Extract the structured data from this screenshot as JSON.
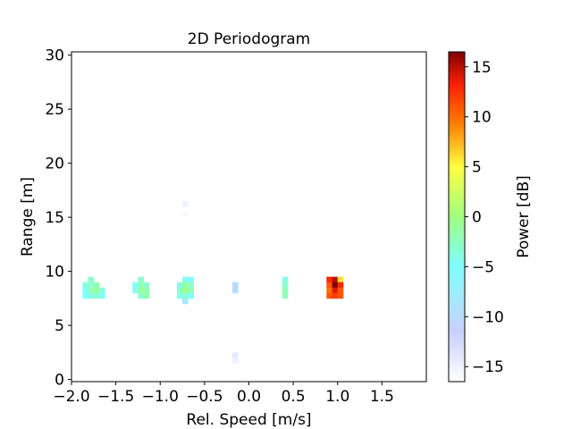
{
  "chart_data": {
    "type": "heatmap",
    "title": "2D Periodogram",
    "xlabel": "Rel. Speed [m/s]",
    "ylabel": "Range [m]",
    "xlim": [
      -2.0,
      2.0
    ],
    "ylim": [
      -0.2,
      30.3
    ],
    "x_ticks": [
      -2.0,
      -1.5,
      -1.0,
      -0.5,
      0.0,
      0.5,
      1.0,
      1.5
    ],
    "x_tick_labels": [
      "−2.0",
      "−1.5",
      "−1.0",
      "−0.5",
      "0.0",
      "0.5",
      "1.0",
      "1.5"
    ],
    "y_ticks": [
      0,
      5,
      10,
      15,
      20,
      25,
      30
    ],
    "y_tick_labels": [
      "0",
      "5",
      "10",
      "15",
      "20",
      "25",
      "30"
    ],
    "colorbar": {
      "label": "Power [dB]",
      "range": [
        -16.5,
        16.5
      ],
      "colormap": "jet",
      "ticks": [
        -15,
        -10,
        -5,
        0,
        5,
        10,
        15
      ],
      "tick_labels": [
        "−15",
        "−10",
        "−5",
        "0",
        "5",
        "10",
        "15"
      ]
    },
    "cell_size": {
      "dx": 0.0625,
      "dy": 0.5
    },
    "cells": [
      {
        "x": -1.781,
        "y": 9.25,
        "v": -3
      },
      {
        "x": -1.844,
        "y": 8.75,
        "v": -4
      },
      {
        "x": -1.781,
        "y": 8.75,
        "v": -3
      },
      {
        "x": -1.719,
        "y": 8.75,
        "v": -2
      },
      {
        "x": -1.844,
        "y": 8.25,
        "v": -5
      },
      {
        "x": -1.781,
        "y": 8.25,
        "v": -2
      },
      {
        "x": -1.719,
        "y": 8.25,
        "v": -1
      },
      {
        "x": -1.656,
        "y": 8.25,
        "v": -4
      },
      {
        "x": -1.844,
        "y": 7.75,
        "v": -5
      },
      {
        "x": -1.781,
        "y": 7.75,
        "v": -4
      },
      {
        "x": -1.719,
        "y": 7.75,
        "v": -3
      },
      {
        "x": -1.656,
        "y": 7.75,
        "v": -5
      },
      {
        "x": -1.219,
        "y": 9.25,
        "v": -3
      },
      {
        "x": -1.281,
        "y": 8.75,
        "v": -5
      },
      {
        "x": -1.219,
        "y": 8.75,
        "v": -2
      },
      {
        "x": -1.156,
        "y": 8.75,
        "v": -3
      },
      {
        "x": -1.281,
        "y": 8.25,
        "v": -6
      },
      {
        "x": -1.219,
        "y": 8.25,
        "v": -1
      },
      {
        "x": -1.156,
        "y": 8.25,
        "v": -2
      },
      {
        "x": -1.219,
        "y": 7.75,
        "v": -3
      },
      {
        "x": -1.156,
        "y": 7.75,
        "v": -2
      },
      {
        "x": -0.719,
        "y": 9.25,
        "v": -5
      },
      {
        "x": -0.656,
        "y": 9.25,
        "v": -6
      },
      {
        "x": -0.781,
        "y": 8.75,
        "v": -4
      },
      {
        "x": -0.719,
        "y": 8.75,
        "v": -1
      },
      {
        "x": -0.656,
        "y": 8.75,
        "v": -3
      },
      {
        "x": -0.781,
        "y": 8.25,
        "v": -3
      },
      {
        "x": -0.719,
        "y": 8.25,
        "v": 0
      },
      {
        "x": -0.656,
        "y": 8.25,
        "v": -2
      },
      {
        "x": -0.781,
        "y": 7.75,
        "v": -4
      },
      {
        "x": -0.719,
        "y": 7.75,
        "v": -3
      },
      {
        "x": -0.656,
        "y": 7.75,
        "v": -5
      },
      {
        "x": -0.719,
        "y": 7.25,
        "v": -8
      },
      {
        "x": -0.156,
        "y": 8.75,
        "v": -10
      },
      {
        "x": -0.156,
        "y": 8.25,
        "v": -10
      },
      {
        "x": 0.406,
        "y": 9.25,
        "v": -4
      },
      {
        "x": 0.406,
        "y": 8.75,
        "v": -3
      },
      {
        "x": 0.406,
        "y": 8.25,
        "v": -2
      },
      {
        "x": 0.406,
        "y": 7.75,
        "v": -2
      },
      {
        "x": 0.906,
        "y": 9.25,
        "v": 13
      },
      {
        "x": 0.969,
        "y": 9.25,
        "v": 15
      },
      {
        "x": 1.031,
        "y": 9.25,
        "v": 6
      },
      {
        "x": 0.906,
        "y": 8.75,
        "v": 11
      },
      {
        "x": 0.969,
        "y": 8.75,
        "v": 16.5
      },
      {
        "x": 1.031,
        "y": 8.75,
        "v": 13
      },
      {
        "x": 0.906,
        "y": 8.25,
        "v": 10
      },
      {
        "x": 0.969,
        "y": 8.25,
        "v": 14
      },
      {
        "x": 1.031,
        "y": 8.25,
        "v": 11
      },
      {
        "x": 0.906,
        "y": 7.75,
        "v": 11
      },
      {
        "x": 0.969,
        "y": 7.75,
        "v": 12
      },
      {
        "x": 1.031,
        "y": 7.75,
        "v": 11
      },
      {
        "x": -0.719,
        "y": 16.25,
        "v": -15
      },
      {
        "x": -0.719,
        "y": 15.25,
        "v": -16
      },
      {
        "x": -0.156,
        "y": 2.25,
        "v": -14
      },
      {
        "x": -0.156,
        "y": 1.75,
        "v": -15
      }
    ]
  }
}
